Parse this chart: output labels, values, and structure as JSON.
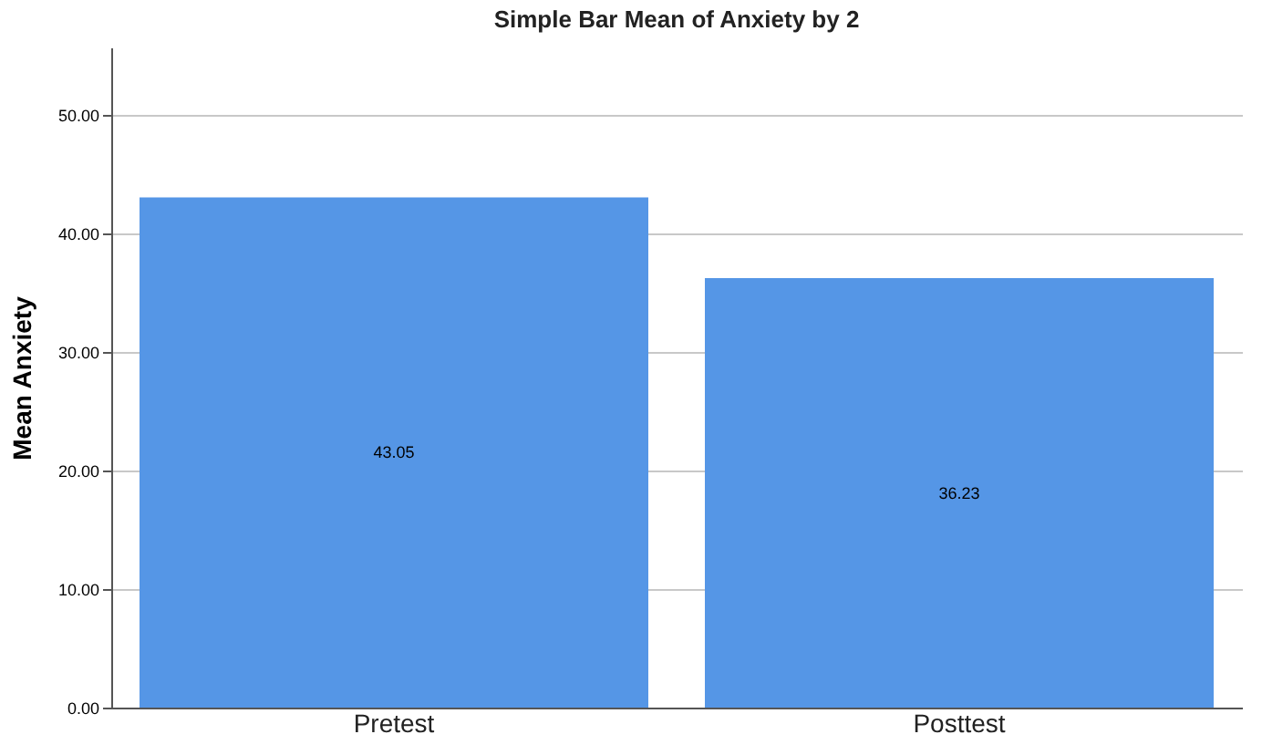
{
  "chart_data": {
    "type": "bar",
    "title": "Simple Bar Mean of Anxiety by 2",
    "ylabel": "Mean Anxiety",
    "categories": [
      "Pretest",
      "Posttest"
    ],
    "values": [
      43.05,
      36.23
    ],
    "color": "#5596e6",
    "ylim": [
      0,
      55.7
    ],
    "yticks": [
      {
        "value": 0,
        "label": "0.00"
      },
      {
        "value": 10,
        "label": "10.00"
      },
      {
        "value": 20,
        "label": "20.00"
      },
      {
        "value": 30,
        "label": "30.00"
      },
      {
        "value": 40,
        "label": "40.00"
      },
      {
        "value": 50,
        "label": "50.00"
      }
    ],
    "grid": "y",
    "data_labels": true
  }
}
